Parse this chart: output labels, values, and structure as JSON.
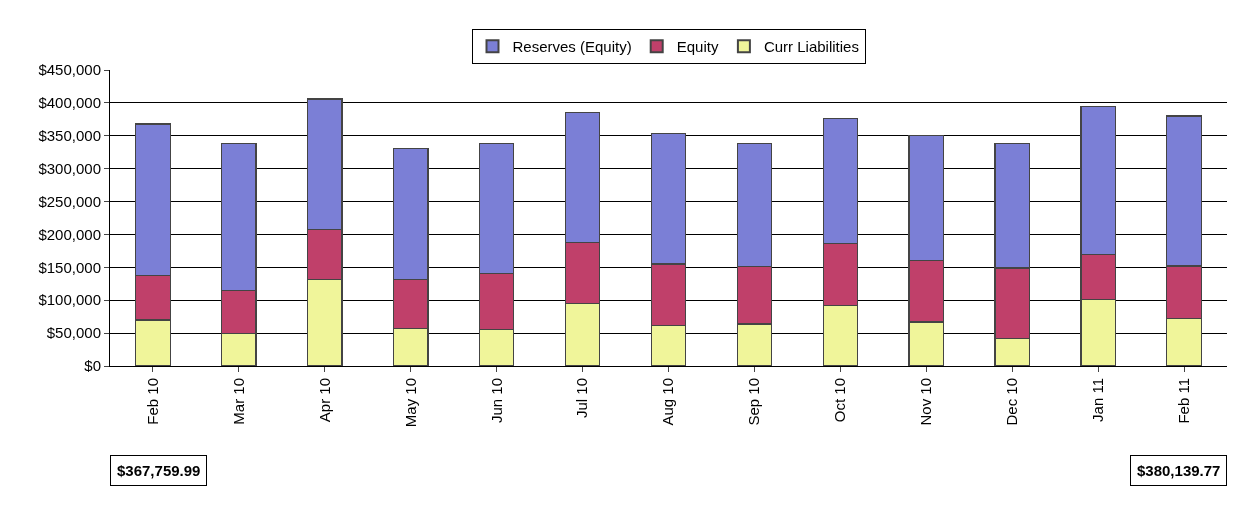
{
  "chart_data": {
    "type": "bar",
    "stacked": true,
    "categories": [
      "Feb 10",
      "Mar 10",
      "Apr 10",
      "May 10",
      "Jun 10",
      "Jul 10",
      "Aug 10",
      "Sep 10",
      "Oct 10",
      "Nov 10",
      "Dec 10",
      "Jan 11",
      "Feb 11"
    ],
    "series": [
      {
        "name": "Curr Liabilities",
        "color": "#f0f59a",
        "values": [
          70000,
          50000,
          131000,
          57000,
          55000,
          95000,
          61000,
          64000,
          92000,
          67000,
          42000,
          101000,
          72000
        ]
      },
      {
        "name": "Equity",
        "color": "#c0406a",
        "values": [
          67000,
          65000,
          77000,
          74000,
          86000,
          93000,
          94000,
          87000,
          94000,
          94000,
          107000,
          69000,
          80000
        ]
      },
      {
        "name": "Reserves (Equity)",
        "color": "#7b7fd6",
        "values": [
          231000,
          223000,
          198000,
          200000,
          197000,
          198000,
          199000,
          187000,
          190000,
          189000,
          189000,
          225000,
          228000
        ]
      }
    ],
    "ylim": [
      0,
      450000
    ],
    "yticks": [
      {
        "value": 0,
        "label": "$0"
      },
      {
        "value": 50000,
        "label": "$50,000"
      },
      {
        "value": 100000,
        "label": "$100,000"
      },
      {
        "value": 150000,
        "label": "$150,000"
      },
      {
        "value": 200000,
        "label": "$200,000"
      },
      {
        "value": 250000,
        "label": "$250,000"
      },
      {
        "value": 300000,
        "label": "$300,000"
      },
      {
        "value": 350000,
        "label": "$350,000"
      },
      {
        "value": 400000,
        "label": "$400,000"
      },
      {
        "value": 450000,
        "label": "$450,000"
      }
    ],
    "grid": "y",
    "legend": "top",
    "annotations": [
      "$367,759.99",
      "$380,139.77"
    ]
  }
}
